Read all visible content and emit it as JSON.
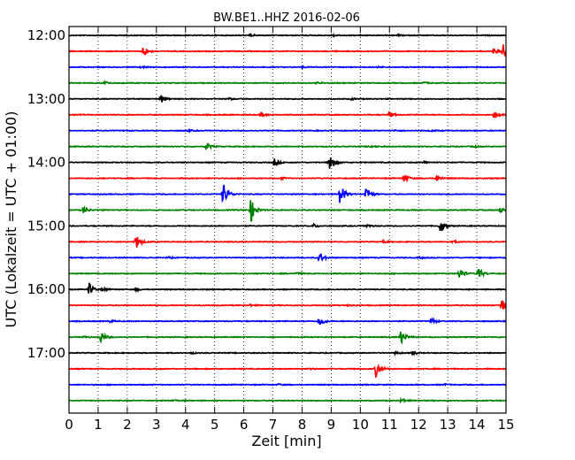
{
  "chart_data": {
    "type": "line",
    "title": "BW.BE1..HHZ 2016-02-06",
    "xlabel": "Zeit  [min]",
    "ylabel": "UTC (Lokalzeit = UTC + 01:00)",
    "xlim": [
      0,
      15
    ],
    "x_ticks": [
      "0",
      "1",
      "2",
      "3",
      "4",
      "5",
      "6",
      "7",
      "8",
      "9",
      "10",
      "11",
      "12",
      "13",
      "14",
      "15"
    ],
    "x_tick_values": [
      0,
      1,
      2,
      3,
      4,
      5,
      6,
      7,
      8,
      9,
      10,
      11,
      12,
      13,
      14,
      15
    ],
    "y_ticks": [
      "12:00",
      "13:00",
      "14:00",
      "15:00",
      "16:00",
      "17:00"
    ],
    "y_tick_traces": [
      0,
      4,
      8,
      12,
      16,
      20
    ],
    "grid": true,
    "trace_colors": [
      "#000000",
      "#ff0000",
      "#0000ff",
      "#008000"
    ],
    "traces": [
      {
        "start": "12:00",
        "color": "#000000",
        "events": [
          {
            "t": 6.2,
            "amp": 0.12
          },
          {
            "t": 9.1,
            "amp": 0.1
          },
          {
            "t": 11.3,
            "amp": 0.08
          }
        ]
      },
      {
        "start": "12:15",
        "color": "#ff0000",
        "events": [
          {
            "t": 2.55,
            "amp": 0.7
          },
          {
            "t": 14.9,
            "amp": 0.8
          },
          {
            "t": 14.6,
            "amp": 0.4
          }
        ]
      },
      {
        "start": "12:30",
        "color": "#0000ff",
        "events": [
          {
            "t": 2.5,
            "amp": 0.1
          },
          {
            "t": 8.0,
            "amp": 0.1
          },
          {
            "t": 10.6,
            "amp": 0.08
          }
        ]
      },
      {
        "start": "12:45",
        "color": "#008000",
        "events": [
          {
            "t": 1.2,
            "amp": 0.25
          },
          {
            "t": 8.5,
            "amp": 0.1
          },
          {
            "t": 12.2,
            "amp": 0.1
          }
        ]
      },
      {
        "start": "13:00",
        "color": "#000000",
        "events": [
          {
            "t": 3.15,
            "amp": 0.5
          },
          {
            "t": 5.5,
            "amp": 0.12
          },
          {
            "t": 9.7,
            "amp": 0.1
          }
        ]
      },
      {
        "start": "13:15",
        "color": "#ff0000",
        "events": [
          {
            "t": 6.6,
            "amp": 0.25
          },
          {
            "t": 11.0,
            "amp": 0.35
          },
          {
            "t": 14.6,
            "amp": 0.45
          }
        ]
      },
      {
        "start": "13:30",
        "color": "#0000ff",
        "events": [
          {
            "t": 4.1,
            "amp": 0.08
          },
          {
            "t": 11.2,
            "amp": 0.08
          },
          {
            "t": 12.4,
            "amp": 0.08
          }
        ]
      },
      {
        "start": "13:45",
        "color": "#008000",
        "events": [
          {
            "t": 4.7,
            "amp": 0.55
          },
          {
            "t": 10.3,
            "amp": 0.15
          },
          {
            "t": 13.9,
            "amp": 0.12
          }
        ]
      },
      {
        "start": "14:00",
        "color": "#000000",
        "events": [
          {
            "t": 7.05,
            "amp": 0.45
          },
          {
            "t": 8.95,
            "amp": 1.3
          },
          {
            "t": 12.2,
            "amp": 0.12
          }
        ]
      },
      {
        "start": "14:15",
        "color": "#ff0000",
        "events": [
          {
            "t": 11.5,
            "amp": 0.55
          },
          {
            "t": 12.6,
            "amp": 0.45
          },
          {
            "t": 7.3,
            "amp": 0.1
          }
        ]
      },
      {
        "start": "14:30",
        "color": "#0000ff",
        "events": [
          {
            "t": 5.3,
            "amp": 1.5
          },
          {
            "t": 9.3,
            "amp": 1.45
          },
          {
            "t": 10.2,
            "amp": 0.9
          }
        ]
      },
      {
        "start": "14:45",
        "color": "#008000",
        "events": [
          {
            "t": 0.5,
            "amp": 0.45
          },
          {
            "t": 6.25,
            "amp": 1.4
          },
          {
            "t": 14.8,
            "amp": 0.35
          }
        ]
      },
      {
        "start": "15:00",
        "color": "#000000",
        "events": [
          {
            "t": 8.4,
            "amp": 0.2
          },
          {
            "t": 10.2,
            "amp": 0.2
          },
          {
            "t": 12.75,
            "amp": 0.95
          }
        ]
      },
      {
        "start": "15:15",
        "color": "#ff0000",
        "events": [
          {
            "t": 2.3,
            "amp": 0.9
          },
          {
            "t": 10.8,
            "amp": 0.12
          },
          {
            "t": 13.2,
            "amp": 0.12
          }
        ]
      },
      {
        "start": "15:30",
        "color": "#0000ff",
        "events": [
          {
            "t": 8.6,
            "amp": 0.65
          },
          {
            "t": 3.4,
            "amp": 0.1
          },
          {
            "t": 12.0,
            "amp": 0.1
          }
        ]
      },
      {
        "start": "15:45",
        "color": "#008000",
        "events": [
          {
            "t": 7.8,
            "amp": 0.12
          },
          {
            "t": 13.4,
            "amp": 0.7
          },
          {
            "t": 14.05,
            "amp": 0.75
          }
        ]
      },
      {
        "start": "16:00",
        "color": "#000000",
        "events": [
          {
            "t": 0.7,
            "amp": 0.8
          },
          {
            "t": 1.2,
            "amp": 0.15
          },
          {
            "t": 2.3,
            "amp": 0.15
          }
        ]
      },
      {
        "start": "16:15",
        "color": "#ff0000",
        "events": [
          {
            "t": 14.85,
            "amp": 0.9
          },
          {
            "t": 6.2,
            "amp": 0.1
          },
          {
            "t": 9.6,
            "amp": 0.08
          }
        ]
      },
      {
        "start": "16:30",
        "color": "#0000ff",
        "events": [
          {
            "t": 8.6,
            "amp": 0.65
          },
          {
            "t": 12.45,
            "amp": 0.35
          },
          {
            "t": 1.4,
            "amp": 0.12
          }
        ]
      },
      {
        "start": "16:45",
        "color": "#008000",
        "events": [
          {
            "t": 1.1,
            "amp": 0.7
          },
          {
            "t": 11.4,
            "amp": 0.8
          },
          {
            "t": 0.5,
            "amp": 0.1
          }
        ]
      },
      {
        "start": "17:00",
        "color": "#000000",
        "events": [
          {
            "t": 11.8,
            "amp": 0.25
          },
          {
            "t": 11.2,
            "amp": 0.15
          },
          {
            "t": 4.2,
            "amp": 0.08
          }
        ]
      },
      {
        "start": "17:15",
        "color": "#ff0000",
        "events": [
          {
            "t": 10.55,
            "amp": 1.1
          },
          {
            "t": 3.0,
            "amp": 0.08
          },
          {
            "t": 8.3,
            "amp": 0.08
          }
        ]
      },
      {
        "start": "17:30",
        "color": "#0000ff",
        "events": [
          {
            "t": 7.2,
            "amp": 0.08
          },
          {
            "t": 12.9,
            "amp": 0.08
          }
        ]
      },
      {
        "start": "17:45",
        "color": "#008000",
        "events": [
          {
            "t": 11.4,
            "amp": 0.25
          },
          {
            "t": 3.6,
            "amp": 0.08
          }
        ]
      }
    ]
  }
}
